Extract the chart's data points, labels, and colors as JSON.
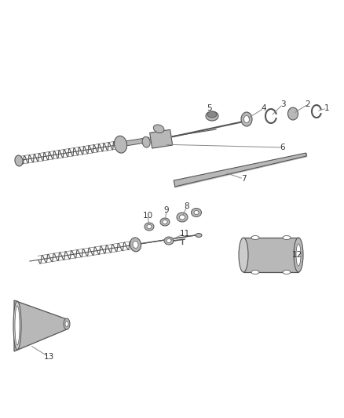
{
  "bg_color": "#ffffff",
  "line_color": "#555555",
  "part_color": "#b8b8b8",
  "dark_part": "#888888",
  "label_color": "#333333",
  "fig_width": 4.38,
  "fig_height": 5.33,
  "dpi": 100
}
